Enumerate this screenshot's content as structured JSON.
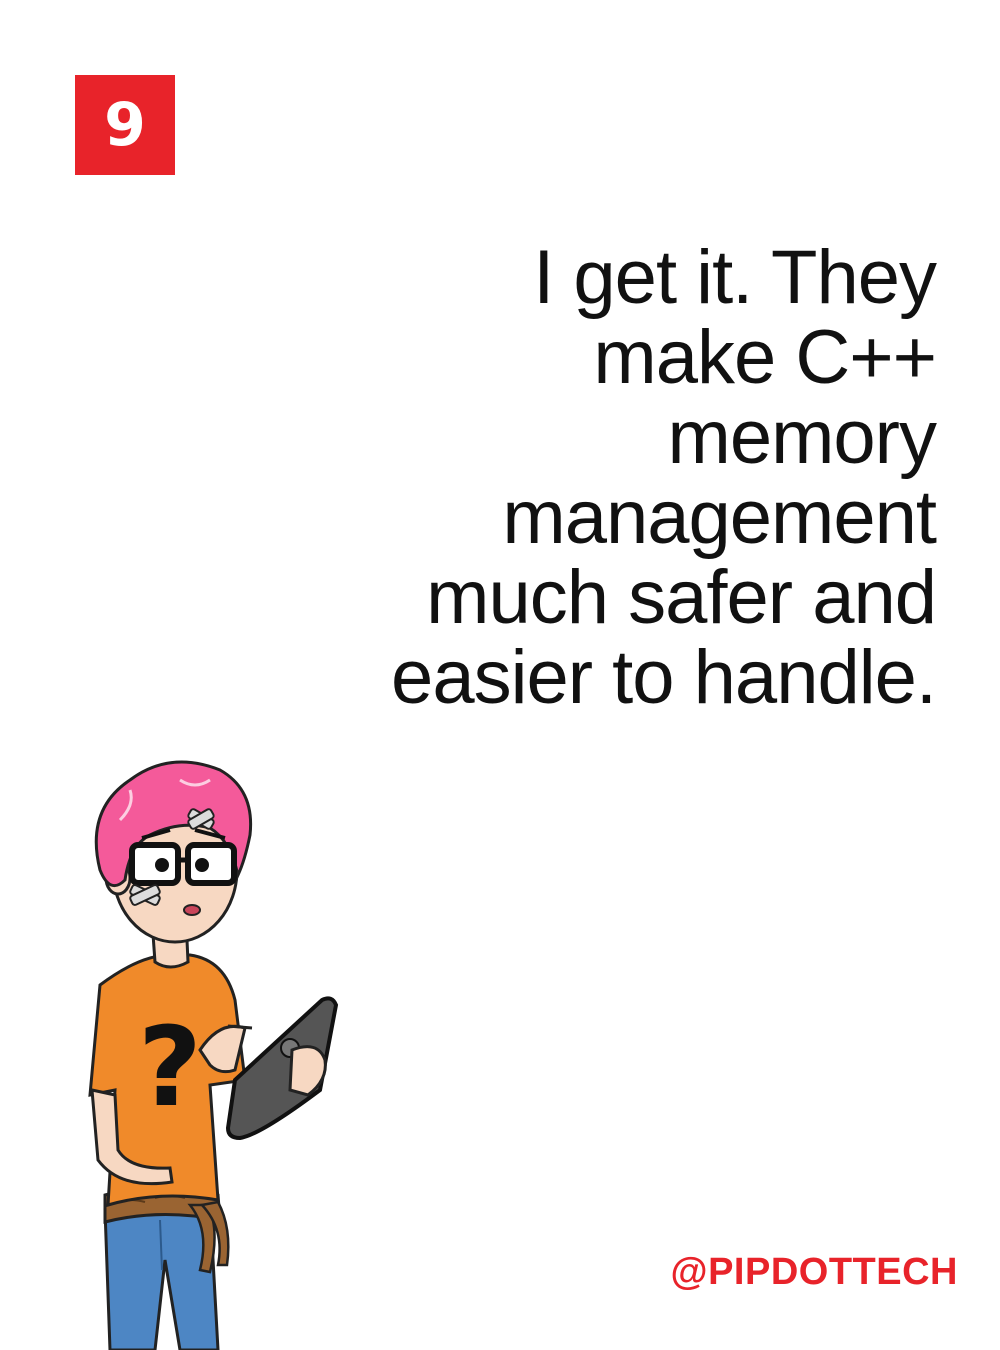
{
  "badge": {
    "number": "9",
    "color": "#e8232a"
  },
  "quote": {
    "lines": [
      "I get it. They",
      "make C++",
      "memory",
      "management",
      "much safer and",
      "easier to handle."
    ]
  },
  "handle": {
    "text": "@PIPDOTTECH",
    "color": "#e8232a"
  },
  "illustration": {
    "icon": "cartoon-developer-with-tablet",
    "colors": {
      "hair": "#f45a9a",
      "shirt": "#f08a2a",
      "jeans": "#4d86c4",
      "rope": "#9a6432",
      "skin": "#f7d8c2",
      "tablet": "#555555"
    }
  }
}
